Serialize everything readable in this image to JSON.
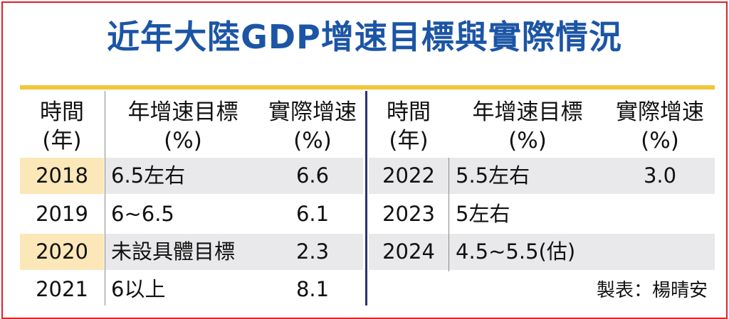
{
  "title": "近年大陸GDP增速目標與實際情況",
  "headers": {
    "time_line1": "時間",
    "time_line2": "(年)",
    "target_line1": "年增速目標",
    "target_line2": "(%)",
    "actual_line1": "實際增速",
    "actual_line2": "(%)"
  },
  "left_rows": [
    {
      "year": "2018",
      "target": "6.5左右",
      "actual": "6.6"
    },
    {
      "year": "2019",
      "target": "6~6.5",
      "actual": "6.1"
    },
    {
      "year": "2020",
      "target": "未設具體目標",
      "actual": "2.3"
    },
    {
      "year": "2021",
      "target": "6以上",
      "actual": "8.1"
    }
  ],
  "right_rows": [
    {
      "year": "2022",
      "target": "5.5左右",
      "actual": "3.0"
    },
    {
      "year": "2023",
      "target": "5左右",
      "actual": ""
    },
    {
      "year": "2024",
      "target": "4.5~5.5(估)",
      "actual": ""
    }
  ],
  "credit": "製表：楊晴安",
  "colors": {
    "title": "#1c55a5",
    "border": "#e0202a",
    "rule": "#f2c53a",
    "highlight_left": "#fbe7b8",
    "highlight_right": "#e9e9eb",
    "divider": "#2a2f7a"
  }
}
